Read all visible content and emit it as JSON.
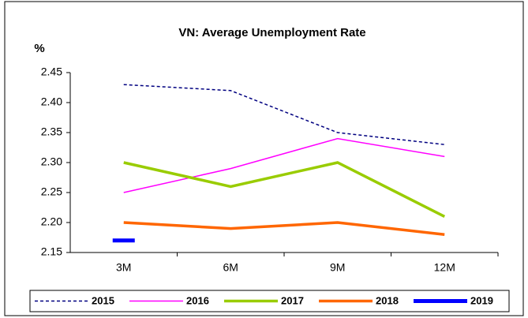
{
  "chart_data": {
    "type": "line",
    "title": "VN: Average Unemployment Rate",
    "y_label": "%",
    "categories": [
      "3M",
      "6M",
      "9M",
      "12M"
    ],
    "series": [
      {
        "name": "2015",
        "color": "#000080",
        "dashed": true,
        "values": [
          2.43,
          2.42,
          2.35,
          2.33
        ]
      },
      {
        "name": "2016",
        "color": "#ff00ff",
        "values": [
          2.25,
          2.29,
          2.34,
          2.31
        ]
      },
      {
        "name": "2017",
        "color": "#99cc00",
        "values": [
          2.3,
          2.26,
          2.3,
          2.21
        ]
      },
      {
        "name": "2018",
        "color": "#ff6600",
        "values": [
          2.2,
          2.19,
          2.2,
          2.18
        ]
      },
      {
        "name": "2019",
        "color": "#0000ff",
        "values": [
          2.17,
          null,
          null,
          null
        ]
      }
    ],
    "ylim": [
      2.15,
      2.45
    ],
    "yticks": [
      2.15,
      {
        "value": 2.2,
        "label": "2.20"
      },
      2.25,
      {
        "value": 2.3,
        "label": "2.30"
      },
      2.35,
      {
        "value": 2.4,
        "label": "2.40"
      },
      2.45
    ],
    "legend": "bottom"
  }
}
